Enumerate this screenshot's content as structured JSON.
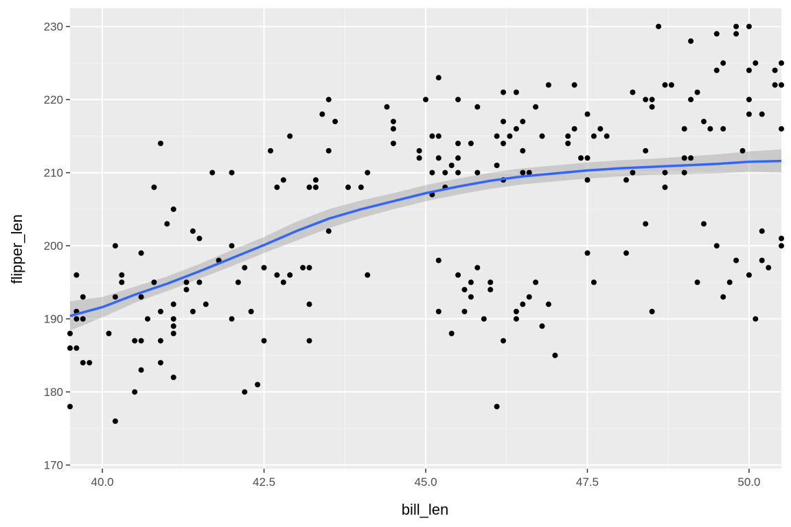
{
  "chart_data": {
    "type": "scatter",
    "title": "",
    "xlabel": "bill_len",
    "ylabel": "flipper_len",
    "xlim": [
      39.5,
      50.5
    ],
    "ylim": [
      169.5,
      232.5
    ],
    "x_ticks": [
      40.0,
      42.5,
      45.0,
      47.5,
      50.0
    ],
    "x_tick_labels": [
      "40.0",
      "42.5",
      "45.0",
      "47.5",
      "50.0"
    ],
    "y_ticks": [
      170,
      180,
      190,
      200,
      210,
      220,
      230
    ],
    "y_tick_labels": [
      "170",
      "180",
      "190",
      "200",
      "210",
      "220",
      "230"
    ],
    "grid": true,
    "legend": "none",
    "colors": {
      "panel": "#ebebeb",
      "grid_major": "#ffffff",
      "grid_minor": "#f4f4f4",
      "points": "#000000",
      "smooth_line": "#3366ff",
      "ribbon": "#999999"
    },
    "points": [
      [
        39.5,
        188
      ],
      [
        39.5,
        186
      ],
      [
        39.5,
        178
      ],
      [
        39.6,
        196
      ],
      [
        39.6,
        191
      ],
      [
        39.6,
        190
      ],
      [
        39.6,
        186
      ],
      [
        39.7,
        193
      ],
      [
        39.7,
        190
      ],
      [
        39.7,
        184
      ],
      [
        39.8,
        184
      ],
      [
        40.1,
        188
      ],
      [
        40.2,
        200
      ],
      [
        40.2,
        193
      ],
      [
        40.2,
        176
      ],
      [
        40.3,
        196
      ],
      [
        40.3,
        195
      ],
      [
        40.5,
        187
      ],
      [
        40.5,
        180
      ],
      [
        40.6,
        199
      ],
      [
        40.6,
        193
      ],
      [
        40.6,
        187
      ],
      [
        40.6,
        183
      ],
      [
        40.7,
        190
      ],
      [
        40.8,
        208
      ],
      [
        40.8,
        195
      ],
      [
        40.9,
        214
      ],
      [
        40.9,
        191
      ],
      [
        40.9,
        187
      ],
      [
        40.9,
        184
      ],
      [
        41.0,
        203
      ],
      [
        41.1,
        205
      ],
      [
        41.1,
        192
      ],
      [
        41.1,
        190
      ],
      [
        41.1,
        189
      ],
      [
        41.1,
        188
      ],
      [
        41.1,
        182
      ],
      [
        41.3,
        195
      ],
      [
        41.3,
        194
      ],
      [
        41.4,
        202
      ],
      [
        41.4,
        191
      ],
      [
        41.5,
        201
      ],
      [
        41.5,
        195
      ],
      [
        41.6,
        192
      ],
      [
        41.7,
        210
      ],
      [
        41.8,
        198
      ],
      [
        42.0,
        210
      ],
      [
        42.0,
        200
      ],
      [
        42.0,
        190
      ],
      [
        42.1,
        195
      ],
      [
        42.2,
        197
      ],
      [
        42.2,
        180
      ],
      [
        42.3,
        191
      ],
      [
        42.4,
        181
      ],
      [
        42.5,
        197
      ],
      [
        42.5,
        187
      ],
      [
        42.6,
        213
      ],
      [
        42.7,
        208
      ],
      [
        42.7,
        196
      ],
      [
        42.8,
        209
      ],
      [
        42.8,
        195
      ],
      [
        42.9,
        215
      ],
      [
        42.9,
        196
      ],
      [
        43.1,
        197
      ],
      [
        43.2,
        208
      ],
      [
        43.2,
        197
      ],
      [
        43.2,
        192
      ],
      [
        43.2,
        187
      ],
      [
        43.3,
        209
      ],
      [
        43.3,
        208
      ],
      [
        43.4,
        218
      ],
      [
        43.5,
        220
      ],
      [
        43.5,
        213
      ],
      [
        43.5,
        202
      ],
      [
        43.6,
        217
      ],
      [
        43.8,
        208
      ],
      [
        44.0,
        208
      ],
      [
        44.1,
        210
      ],
      [
        44.1,
        196
      ],
      [
        44.4,
        219
      ],
      [
        44.5,
        217
      ],
      [
        44.5,
        216
      ],
      [
        44.5,
        214
      ],
      [
        44.9,
        213
      ],
      [
        44.9,
        212
      ],
      [
        45.0,
        220
      ],
      [
        45.1,
        215
      ],
      [
        45.1,
        210
      ],
      [
        45.1,
        207
      ],
      [
        45.2,
        223
      ],
      [
        45.2,
        215
      ],
      [
        45.2,
        212
      ],
      [
        45.2,
        198
      ],
      [
        45.2,
        191
      ],
      [
        45.3,
        210
      ],
      [
        45.3,
        208
      ],
      [
        45.4,
        211
      ],
      [
        45.4,
        188
      ],
      [
        45.5,
        220
      ],
      [
        45.5,
        214
      ],
      [
        45.5,
        212
      ],
      [
        45.5,
        210
      ],
      [
        45.5,
        196
      ],
      [
        45.6,
        194
      ],
      [
        45.6,
        191
      ],
      [
        45.7,
        214
      ],
      [
        45.7,
        195
      ],
      [
        45.7,
        193
      ],
      [
        45.8,
        219
      ],
      [
        45.8,
        210
      ],
      [
        45.8,
        197
      ],
      [
        45.9,
        190
      ],
      [
        46.0,
        195
      ],
      [
        46.0,
        194
      ],
      [
        46.1,
        215
      ],
      [
        46.1,
        211
      ],
      [
        46.1,
        178
      ],
      [
        46.2,
        221
      ],
      [
        46.2,
        217
      ],
      [
        46.2,
        214
      ],
      [
        46.2,
        209
      ],
      [
        46.2,
        187
      ],
      [
        46.3,
        215
      ],
      [
        46.4,
        221
      ],
      [
        46.4,
        216
      ],
      [
        46.4,
        191
      ],
      [
        46.4,
        190
      ],
      [
        46.5,
        217
      ],
      [
        46.5,
        213
      ],
      [
        46.5,
        210
      ],
      [
        46.5,
        192
      ],
      [
        46.6,
        210
      ],
      [
        46.6,
        193
      ],
      [
        46.7,
        219
      ],
      [
        46.7,
        195
      ],
      [
        46.8,
        215
      ],
      [
        46.8,
        189
      ],
      [
        46.9,
        222
      ],
      [
        46.9,
        192
      ],
      [
        47.0,
        185
      ],
      [
        47.2,
        215
      ],
      [
        47.2,
        214
      ],
      [
        47.3,
        222
      ],
      [
        47.3,
        216
      ],
      [
        47.4,
        212
      ],
      [
        47.5,
        218
      ],
      [
        47.5,
        212
      ],
      [
        47.5,
        209
      ],
      [
        47.5,
        199
      ],
      [
        47.6,
        215
      ],
      [
        47.6,
        195
      ],
      [
        47.7,
        216
      ],
      [
        47.8,
        215
      ],
      [
        48.1,
        209
      ],
      [
        48.1,
        199
      ],
      [
        48.2,
        221
      ],
      [
        48.2,
        210
      ],
      [
        48.4,
        220
      ],
      [
        48.4,
        213
      ],
      [
        48.4,
        203
      ],
      [
        48.5,
        220
      ],
      [
        48.5,
        219
      ],
      [
        48.5,
        191
      ],
      [
        48.6,
        230
      ],
      [
        48.7,
        222
      ],
      [
        48.7,
        210
      ],
      [
        48.7,
        208
      ],
      [
        48.8,
        222
      ],
      [
        49.0,
        216
      ],
      [
        49.0,
        212
      ],
      [
        49.0,
        210
      ],
      [
        49.1,
        228
      ],
      [
        49.1,
        220
      ],
      [
        49.1,
        212
      ],
      [
        49.2,
        221
      ],
      [
        49.2,
        195
      ],
      [
        49.3,
        217
      ],
      [
        49.3,
        203
      ],
      [
        49.4,
        216
      ],
      [
        49.5,
        229
      ],
      [
        49.5,
        224
      ],
      [
        49.5,
        200
      ],
      [
        49.6,
        225
      ],
      [
        49.6,
        216
      ],
      [
        49.6,
        193
      ],
      [
        49.7,
        195
      ],
      [
        49.8,
        230
      ],
      [
        49.8,
        229
      ],
      [
        49.8,
        198
      ],
      [
        49.9,
        213
      ],
      [
        50.0,
        230
      ],
      [
        50.0,
        224
      ],
      [
        50.0,
        220
      ],
      [
        50.0,
        218
      ],
      [
        50.0,
        196
      ],
      [
        50.1,
        225
      ],
      [
        50.1,
        190
      ],
      [
        50.2,
        218
      ],
      [
        50.2,
        202
      ],
      [
        50.2,
        198
      ],
      [
        50.3,
        197
      ],
      [
        50.4,
        224
      ],
      [
        50.4,
        222
      ],
      [
        50.5,
        225
      ],
      [
        50.5,
        222
      ],
      [
        50.5,
        216
      ],
      [
        50.5,
        201
      ],
      [
        50.5,
        200
      ]
    ],
    "smooth_fit": {
      "x": [
        39.5,
        40.0,
        40.5,
        41.0,
        41.5,
        42.0,
        42.5,
        43.0,
        43.5,
        44.0,
        44.5,
        45.0,
        45.5,
        46.0,
        46.5,
        47.0,
        47.5,
        48.0,
        48.5,
        49.0,
        49.5,
        50.0,
        50.5
      ],
      "y": [
        190.4,
        191.6,
        193.3,
        194.8,
        196.5,
        198.3,
        200.1,
        202.0,
        203.7,
        205.0,
        206.1,
        207.2,
        208.1,
        208.9,
        209.5,
        209.9,
        210.3,
        210.6,
        210.8,
        211.0,
        211.2,
        211.5,
        211.6
      ],
      "lower": [
        188.4,
        190.2,
        192.2,
        193.8,
        195.5,
        197.2,
        199.0,
        200.7,
        202.4,
        203.8,
        205.0,
        206.1,
        207.0,
        207.8,
        208.4,
        208.8,
        209.2,
        209.5,
        209.7,
        209.8,
        209.9,
        210.1,
        210.0
      ],
      "upper": [
        192.4,
        193.0,
        194.4,
        195.8,
        197.5,
        199.4,
        201.2,
        203.3,
        205.0,
        206.2,
        207.2,
        208.3,
        209.2,
        210.0,
        210.6,
        211.0,
        211.4,
        211.7,
        211.9,
        212.2,
        212.5,
        212.9,
        213.2
      ]
    }
  }
}
